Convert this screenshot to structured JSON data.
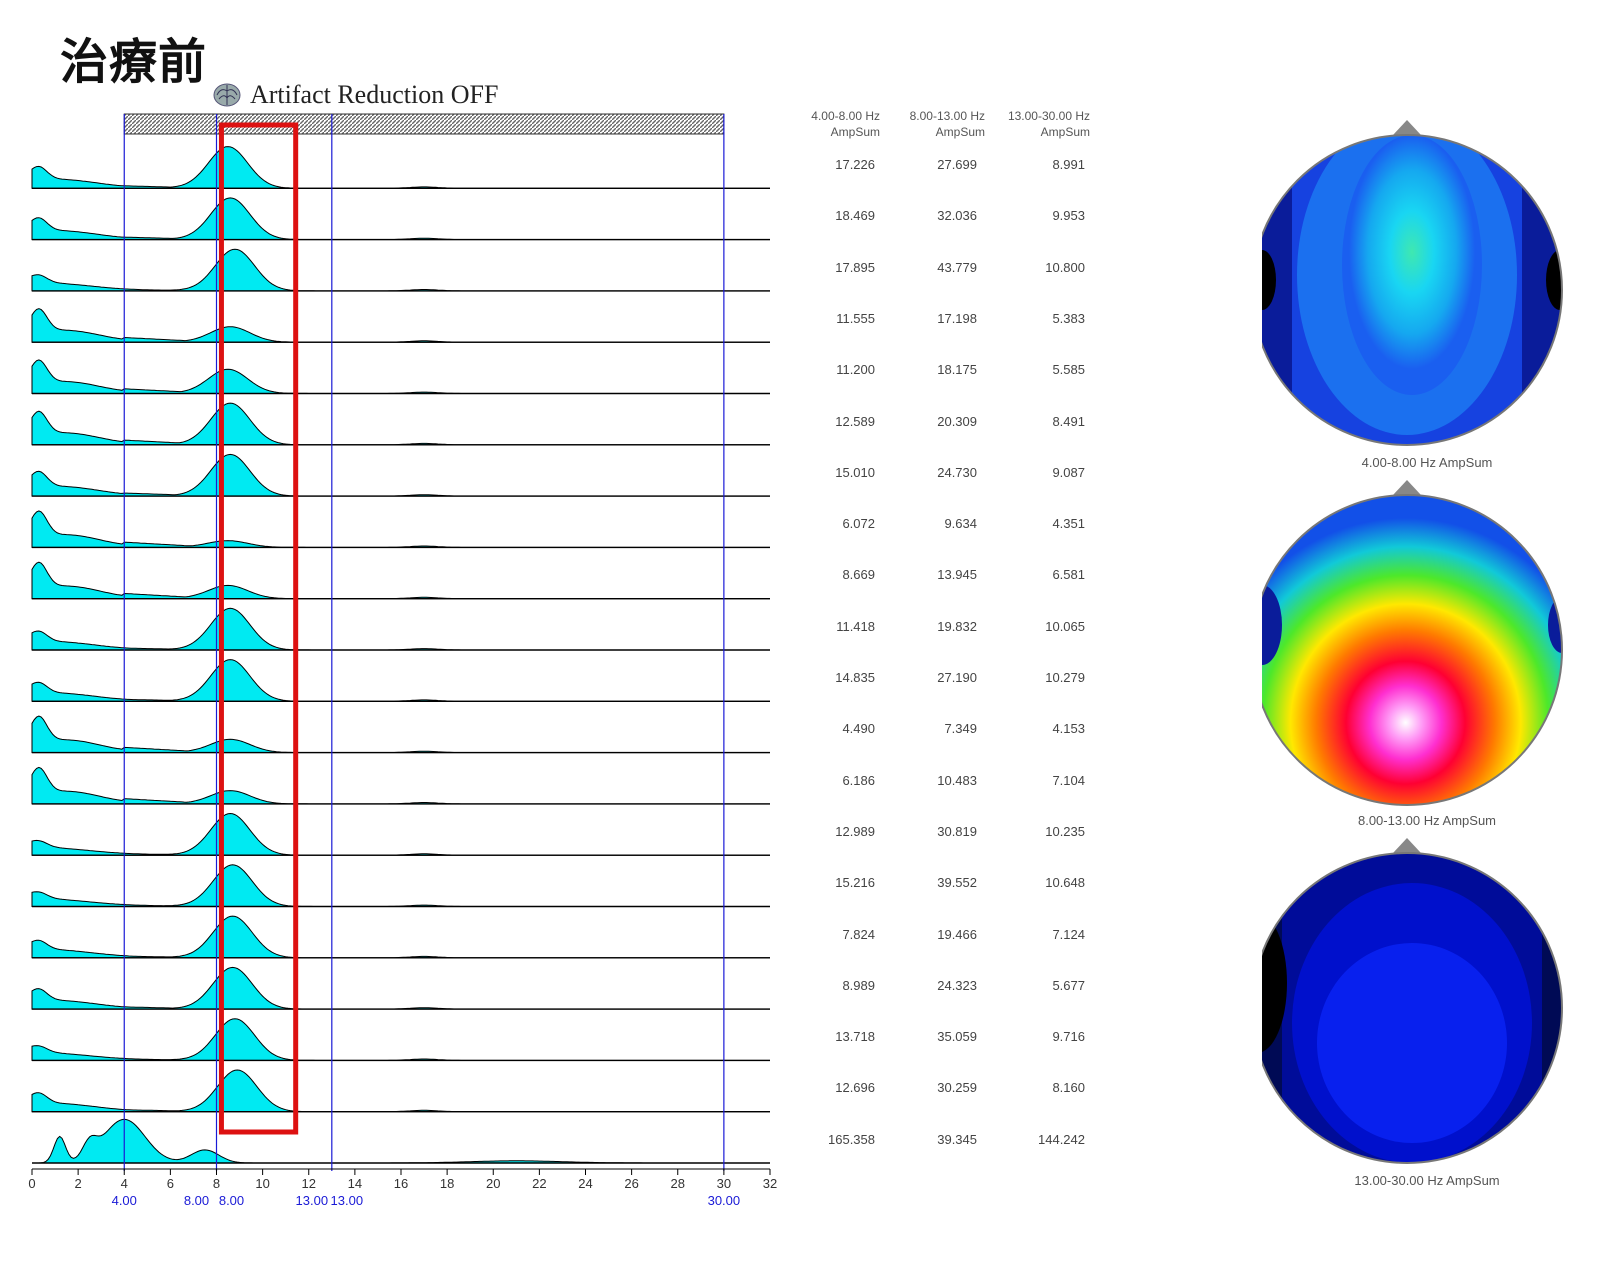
{
  "title": "治療前",
  "artifact_label": "Artifact Reduction OFF",
  "colors": {
    "spectrum_fill": "#00eaf2",
    "spectrum_line": "#000000",
    "marker_line": "#1a1ad6",
    "highlight_box": "#dd1111",
    "hatch_bar": "#666666"
  },
  "table": {
    "headers": [
      {
        "range": "4.00-8.00 Hz",
        "unit": "AmpSum"
      },
      {
        "range": "8.00-13.00 Hz",
        "unit": "AmpSum"
      },
      {
        "range": "13.00-30.00 Hz",
        "unit": "AmpSum"
      }
    ],
    "rows": [
      [
        "17.226",
        "27.699",
        "8.991"
      ],
      [
        "18.469",
        "32.036",
        "9.953"
      ],
      [
        "17.895",
        "43.779",
        "10.800"
      ],
      [
        "11.555",
        "17.198",
        "5.383"
      ],
      [
        "11.200",
        "18.175",
        "5.585"
      ],
      [
        "12.589",
        "20.309",
        "8.491"
      ],
      [
        "15.010",
        "24.730",
        "9.087"
      ],
      [
        "6.072",
        "9.634",
        "4.351"
      ],
      [
        "8.669",
        "13.945",
        "6.581"
      ],
      [
        "11.418",
        "19.832",
        "10.065"
      ],
      [
        "14.835",
        "27.190",
        "10.279"
      ],
      [
        "4.490",
        "7.349",
        "4.153"
      ],
      [
        "6.186",
        "10.483",
        "7.104"
      ],
      [
        "12.989",
        "30.819",
        "10.235"
      ],
      [
        "15.216",
        "39.552",
        "10.648"
      ],
      [
        "7.824",
        "19.466",
        "7.124"
      ],
      [
        "8.989",
        "24.323",
        "5.677"
      ],
      [
        "13.718",
        "35.059",
        "9.716"
      ],
      [
        "12.696",
        "30.259",
        "8.160"
      ],
      [
        "165.358",
        "39.345",
        "144.242"
      ]
    ]
  },
  "topomaps": [
    {
      "caption": "4.00-8.00 Hz AmpSum",
      "palette": "blue-cyan"
    },
    {
      "caption": "8.00-13.00 Hz AmpSum",
      "palette": "rainbow-hot"
    },
    {
      "caption": "13.00-30.00 Hz AmpSum",
      "palette": "dark-blue"
    }
  ],
  "chart_data": {
    "type": "area",
    "xlabel": "",
    "ylabel": "",
    "xlim": [
      0,
      32
    ],
    "x_ticks": [
      "0",
      "2",
      "4",
      "6",
      "8",
      "10",
      "12",
      "14",
      "16",
      "18",
      "20",
      "22",
      "24",
      "26",
      "28",
      "30",
      "32"
    ],
    "marker_labels": [
      {
        "x": 4,
        "label": "4.00"
      },
      {
        "x": 8,
        "label": "8.00"
      },
      {
        "x": 13,
        "label": "13.00"
      },
      {
        "x": 30,
        "label": "30.00"
      }
    ],
    "marker_lines": [
      4,
      8,
      13,
      30
    ],
    "marker_label_pairs": [
      {
        "x": 4,
        "labels": [
          "4.00"
        ]
      },
      {
        "x": 8,
        "labels": [
          "8.00",
          "8.00"
        ]
      },
      {
        "x": 13,
        "labels": [
          "13.00",
          "13.00"
        ]
      },
      {
        "x": 30,
        "labels": [
          "30.00"
        ]
      }
    ],
    "highlight_range": [
      7,
      11
    ],
    "hatch_range": [
      4,
      30
    ],
    "series_count": 20,
    "series": [
      {
        "low_peak": 0.45,
        "alpha_peak": 8.5,
        "alpha_amp": 0.95
      },
      {
        "low_peak": 0.45,
        "alpha_peak": 8.6,
        "alpha_amp": 0.95
      },
      {
        "low_peak": 0.25,
        "alpha_peak": 8.8,
        "alpha_amp": 0.95
      },
      {
        "low_peak": 0.85,
        "alpha_peak": 8.6,
        "alpha_amp": 0.35
      },
      {
        "low_peak": 0.85,
        "alpha_peak": 8.5,
        "alpha_amp": 0.55
      },
      {
        "low_peak": 0.85,
        "alpha_peak": 8.6,
        "alpha_amp": 0.95
      },
      {
        "low_peak": 0.55,
        "alpha_peak": 8.6,
        "alpha_amp": 0.95
      },
      {
        "low_peak": 0.95,
        "alpha_peak": 8.5,
        "alpha_amp": 0.15
      },
      {
        "low_peak": 0.95,
        "alpha_peak": 8.5,
        "alpha_amp": 0.3
      },
      {
        "low_peak": 0.35,
        "alpha_peak": 8.6,
        "alpha_amp": 0.95
      },
      {
        "low_peak": 0.35,
        "alpha_peak": 8.6,
        "alpha_amp": 0.95
      },
      {
        "low_peak": 0.95,
        "alpha_peak": 8.6,
        "alpha_amp": 0.3
      },
      {
        "low_peak": 0.95,
        "alpha_peak": 8.6,
        "alpha_amp": 0.3
      },
      {
        "low_peak": 0.2,
        "alpha_peak": 8.6,
        "alpha_amp": 0.95
      },
      {
        "low_peak": 0.2,
        "alpha_peak": 8.7,
        "alpha_amp": 0.95
      },
      {
        "low_peak": 0.3,
        "alpha_peak": 8.7,
        "alpha_amp": 0.95
      },
      {
        "low_peak": 0.4,
        "alpha_peak": 8.7,
        "alpha_amp": 0.95
      },
      {
        "low_peak": 0.2,
        "alpha_peak": 8.8,
        "alpha_amp": 0.95
      },
      {
        "low_peak": 0.35,
        "alpha_peak": 8.9,
        "alpha_amp": 0.95
      },
      {
        "low_peak": 0.6,
        "alpha_peak": 7.5,
        "alpha_amp": 0.3,
        "delta_peak": 4.0,
        "delta_amp": 1.0
      }
    ]
  }
}
